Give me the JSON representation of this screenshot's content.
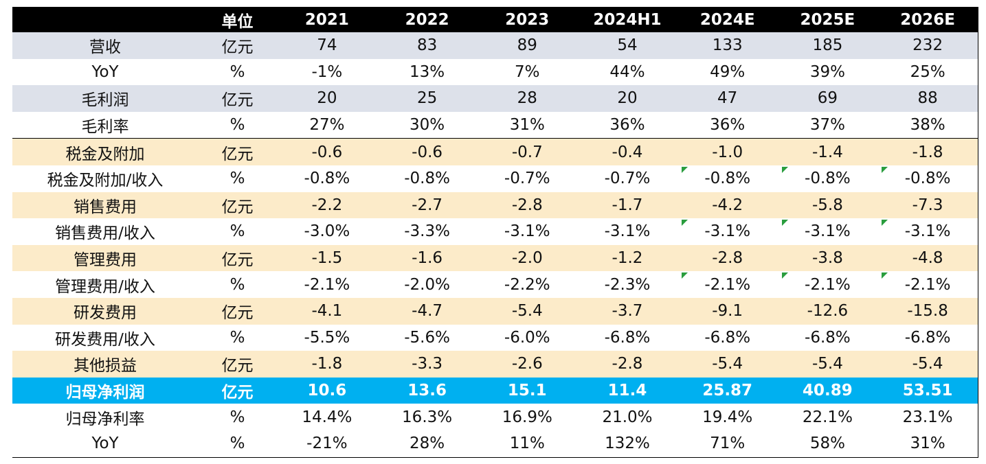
{
  "chart_data": {
    "type": "table",
    "columns": [
      "",
      "单位",
      "2021",
      "2022",
      "2023",
      "2024H1",
      "2024E",
      "2025E",
      "2026E"
    ],
    "rows": [
      {
        "label": "营收",
        "unit": "亿元",
        "values": [
          "74",
          "83",
          "89",
          "54",
          "133",
          "185",
          "232"
        ],
        "band": "gray"
      },
      {
        "label": "YoY",
        "unit": "%",
        "values": [
          "-1%",
          "13%",
          "7%",
          "44%",
          "49%",
          "39%",
          "25%"
        ],
        "band": "white"
      },
      {
        "label": "毛利润",
        "unit": "亿元",
        "values": [
          "20",
          "25",
          "28",
          "20",
          "47",
          "69",
          "88"
        ],
        "band": "gray"
      },
      {
        "label": "毛利率",
        "unit": "%",
        "values": [
          "27%",
          "30%",
          "31%",
          "36%",
          "36%",
          "37%",
          "38%"
        ],
        "band": "white"
      },
      {
        "label": "税金及附加",
        "unit": "亿元",
        "values": [
          "-0.6",
          "-0.6",
          "-0.7",
          "-0.4",
          "-1.0",
          "-1.4",
          "-1.8"
        ],
        "band": "beige",
        "sep": true
      },
      {
        "label": "税金及附加/收入",
        "unit": "%",
        "values": [
          "-0.8%",
          "-0.8%",
          "-0.7%",
          "-0.7%",
          "-0.8%",
          "-0.8%",
          "-0.8%"
        ],
        "band": "white",
        "flags": [
          4,
          5,
          6
        ]
      },
      {
        "label": "销售费用",
        "unit": "亿元",
        "values": [
          "-2.2",
          "-2.7",
          "-2.8",
          "-1.7",
          "-4.2",
          "-5.8",
          "-7.3"
        ],
        "band": "beige"
      },
      {
        "label": "销售费用/收入",
        "unit": "%",
        "values": [
          "-3.0%",
          "-3.3%",
          "-3.1%",
          "-3.1%",
          "-3.1%",
          "-3.1%",
          "-3.1%"
        ],
        "band": "white",
        "flags": [
          4,
          5,
          6
        ]
      },
      {
        "label": "管理费用",
        "unit": "亿元",
        "values": [
          "-1.5",
          "-1.6",
          "-2.0",
          "-1.2",
          "-2.8",
          "-3.8",
          "-4.8"
        ],
        "band": "beige"
      },
      {
        "label": "管理费用/收入",
        "unit": "%",
        "values": [
          "-2.1%",
          "-2.0%",
          "-2.2%",
          "-2.3%",
          "-2.1%",
          "-2.1%",
          "-2.1%"
        ],
        "band": "white",
        "flags": [
          4,
          5,
          6
        ]
      },
      {
        "label": "研发费用",
        "unit": "亿元",
        "values": [
          "-4.1",
          "-4.7",
          "-5.4",
          "-3.7",
          "-9.1",
          "-12.6",
          "-15.8"
        ],
        "band": "beige"
      },
      {
        "label": "研发费用/收入",
        "unit": "%",
        "values": [
          "-5.5%",
          "-5.6%",
          "-6.0%",
          "-6.8%",
          "-6.8%",
          "-6.8%",
          "-6.8%"
        ],
        "band": "white"
      },
      {
        "label": "其他损益",
        "unit": "亿元",
        "values": [
          "-1.8",
          "-3.3",
          "-2.6",
          "-2.8",
          "-5.4",
          "-5.4",
          "-5.4"
        ],
        "band": "beige"
      },
      {
        "label": "归母净利润",
        "unit": "亿元",
        "values": [
          "10.6",
          "13.6",
          "15.1",
          "11.4",
          "25.87",
          "40.89",
          "53.51"
        ],
        "band": "blue"
      },
      {
        "label": "归母净利率",
        "unit": "%",
        "values": [
          "14.4%",
          "16.3%",
          "16.9%",
          "21.0%",
          "19.4%",
          "22.1%",
          "23.1%"
        ],
        "band": "white"
      },
      {
        "label": "YoY",
        "unit": "%",
        "values": [
          "-21%",
          "28%",
          "11%",
          "132%",
          "71%",
          "58%",
          "31%"
        ],
        "band": "white"
      }
    ],
    "colors": {
      "header": "#000000",
      "gray_band": "#dde1ea",
      "beige_band": "#fcebc9",
      "highlight_band": "#00b0f0",
      "flag": "#2a9d3e"
    }
  }
}
